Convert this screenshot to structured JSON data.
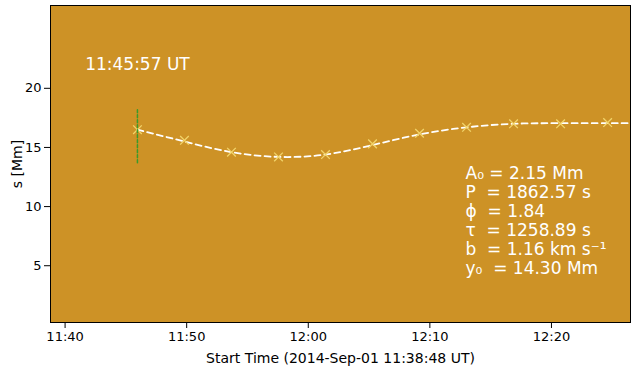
{
  "chart_data": {
    "type": "line",
    "x_label": "Start Time (2014-Sep-01 11:38:48 UT)",
    "y_label": "s [Mm]",
    "xlim": [
      "2014-09-01T11:38:48",
      "2014-09-01T12:26:30"
    ],
    "xticks": [
      {
        "value": "2014-09-01T11:40:00",
        "label": "11:40"
      },
      {
        "value": "2014-09-01T11:50:00",
        "label": "11:50"
      },
      {
        "value": "2014-09-01T12:00:00",
        "label": "12:00"
      },
      {
        "value": "2014-09-01T12:10:00",
        "label": "12:10"
      },
      {
        "value": "2014-09-01T12:20:00",
        "label": "12:20"
      }
    ],
    "ylim": [
      0.2,
      27
    ],
    "yticks": [
      5,
      10,
      15,
      20
    ],
    "grid": false,
    "series": [
      {
        "type": "line",
        "color": "#ffffff",
        "line_style": "dashed",
        "x": [
          "2014-09-01T11:45:57",
          "2014-09-01T11:49:49",
          "2014-09-01T11:53:41",
          "2014-09-01T11:57:33",
          "2014-09-01T12:01:25",
          "2014-09-01T12:05:17",
          "2014-09-01T12:09:09",
          "2014-09-01T12:13:01",
          "2014-09-01T12:16:53",
          "2014-09-01T12:20:45",
          "2014-09-01T12:24:37",
          "2014-09-01T12:26:30"
        ],
        "values": [
          16.5,
          15.5,
          14.6,
          14.2,
          14.4,
          15.2,
          16.1,
          16.7,
          17.0,
          17.05,
          17.05,
          17.05
        ]
      },
      {
        "type": "scatter",
        "color": "#f2d46a",
        "marker": "x",
        "x": [
          "2014-09-01T11:45:57",
          "2014-09-01T11:49:49",
          "2014-09-01T11:53:41",
          "2014-09-01T11:57:33",
          "2014-09-01T12:01:25",
          "2014-09-01T12:05:17",
          "2014-09-01T12:09:09",
          "2014-09-01T12:13:01",
          "2014-09-01T12:16:53",
          "2014-09-01T12:20:45",
          "2014-09-01T12:24:37"
        ],
        "values": [
          16.5,
          15.6,
          14.6,
          14.2,
          14.4,
          15.3,
          16.2,
          16.7,
          17.0,
          17.0,
          17.1
        ]
      }
    ],
    "vline": {
      "x": "2014-09-01T11:45:57",
      "y": [
        13.7,
        18.2
      ],
      "color": "#3a9a2a"
    },
    "annotations": [
      {
        "text": "11:45:57 UT",
        "x": "2014-09-01T11:45:57",
        "y": 22
      }
    ],
    "fit_parameters": [
      "A₀ = 2.15 Mm",
      "P  = 1862.57 s",
      "ϕ  = 1.84",
      "τ  = 1258.89 s",
      "b  = 1.16 km s⁻¹",
      "y₀  = 14.30 Mm"
    ]
  }
}
